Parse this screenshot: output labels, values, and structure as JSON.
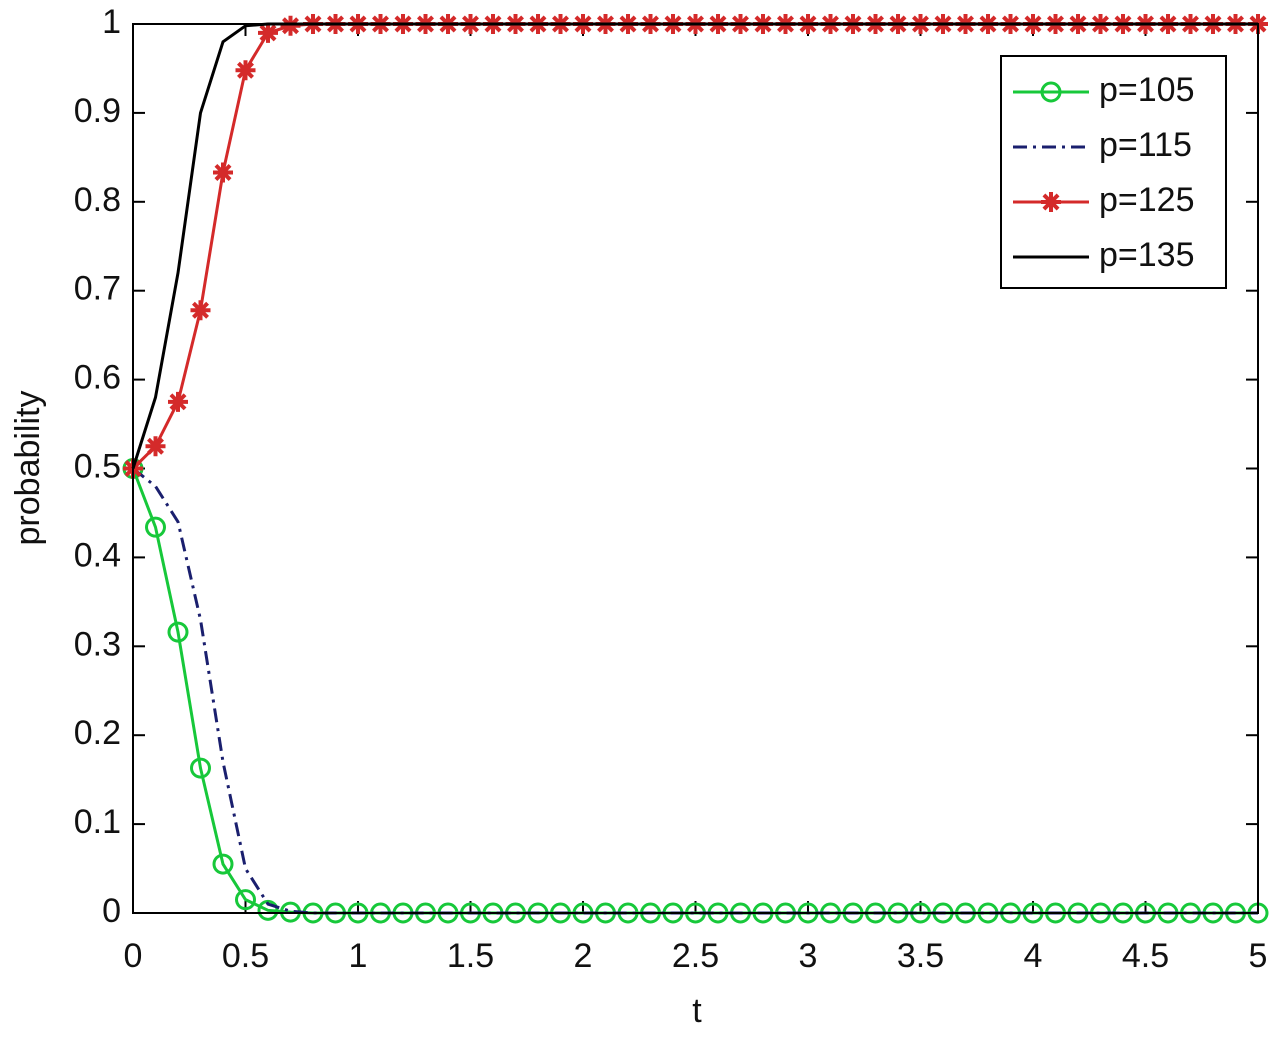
{
  "chart_data": {
    "type": "line",
    "xlabel": "t",
    "ylabel": "probability",
    "x": [
      0,
      0.1,
      0.2,
      0.3,
      0.4,
      0.5,
      0.6,
      0.7,
      0.8,
      0.9,
      1,
      1.1,
      1.2,
      1.3,
      1.4,
      1.5,
      1.6,
      1.7,
      1.8,
      1.9,
      2,
      2.1,
      2.2,
      2.3,
      2.4,
      2.5,
      2.6,
      2.7,
      2.8,
      2.9,
      3,
      3.1,
      3.2,
      3.3,
      3.4,
      3.5,
      3.6,
      3.7,
      3.8,
      3.9,
      4,
      4.1,
      4.2,
      4.3,
      4.4,
      4.5,
      4.6,
      4.7,
      4.8,
      4.9,
      5
    ],
    "series": [
      {
        "name": "p=105",
        "color": "#17c83a",
        "marker": "o",
        "linestyle": "solid",
        "values": [
          0.5,
          0.434,
          0.316,
          0.163,
          0.055,
          0.015,
          0.003,
          0.001,
          0,
          0,
          0,
          0,
          0,
          0,
          0,
          0,
          0,
          0,
          0,
          0,
          0,
          0,
          0,
          0,
          0,
          0,
          0,
          0,
          0,
          0,
          0,
          0,
          0,
          0,
          0,
          0,
          0,
          0,
          0,
          0,
          0,
          0,
          0,
          0,
          0,
          0,
          0,
          0,
          0,
          0,
          0
        ]
      },
      {
        "name": "p=115",
        "color": "#1a1f6e",
        "marker": null,
        "linestyle": "dashdot",
        "values": [
          0.5,
          0.48,
          0.44,
          0.33,
          0.17,
          0.05,
          0.01,
          0.002,
          0,
          0,
          0,
          0,
          0,
          0,
          0,
          0,
          0,
          0,
          0,
          0,
          0,
          0,
          0,
          0,
          0,
          0,
          0,
          0,
          0,
          0,
          0,
          0,
          0,
          0,
          0,
          0,
          0,
          0,
          0,
          0,
          0,
          0,
          0,
          0,
          0,
          0,
          0,
          0,
          0,
          0,
          0
        ]
      },
      {
        "name": "p=125",
        "color": "#d42a2a",
        "marker": "*",
        "linestyle": "solid",
        "values": [
          0.5,
          0.525,
          0.575,
          0.678,
          0.833,
          0.948,
          0.99,
          0.998,
          1,
          1,
          1,
          1,
          1,
          1,
          1,
          1,
          1,
          1,
          1,
          1,
          1,
          1,
          1,
          1,
          1,
          1,
          1,
          1,
          1,
          1,
          1,
          1,
          1,
          1,
          1,
          1,
          1,
          1,
          1,
          1,
          1,
          1,
          1,
          1,
          1,
          1,
          1,
          1,
          1,
          1,
          1
        ]
      },
      {
        "name": "p=135",
        "color": "#000000",
        "marker": null,
        "linestyle": "solid",
        "values": [
          0.5,
          0.58,
          0.72,
          0.9,
          0.98,
          0.998,
          1,
          1,
          1,
          1,
          1,
          1,
          1,
          1,
          1,
          1,
          1,
          1,
          1,
          1,
          1,
          1,
          1,
          1,
          1,
          1,
          1,
          1,
          1,
          1,
          1,
          1,
          1,
          1,
          1,
          1,
          1,
          1,
          1,
          1,
          1,
          1,
          1,
          1,
          1,
          1,
          1,
          1,
          1,
          1,
          1
        ]
      }
    ],
    "xlim": [
      0,
      5
    ],
    "xticks": [
      0,
      0.5,
      1,
      1.5,
      2,
      2.5,
      3,
      3.5,
      4,
      4.5,
      5
    ],
    "ylim": [
      0,
      1
    ],
    "yticks": [
      0,
      0.1,
      0.2,
      0.3,
      0.4,
      0.5,
      0.6,
      0.7,
      0.8,
      0.9,
      1
    ],
    "grid": false,
    "legend": "upper right"
  }
}
